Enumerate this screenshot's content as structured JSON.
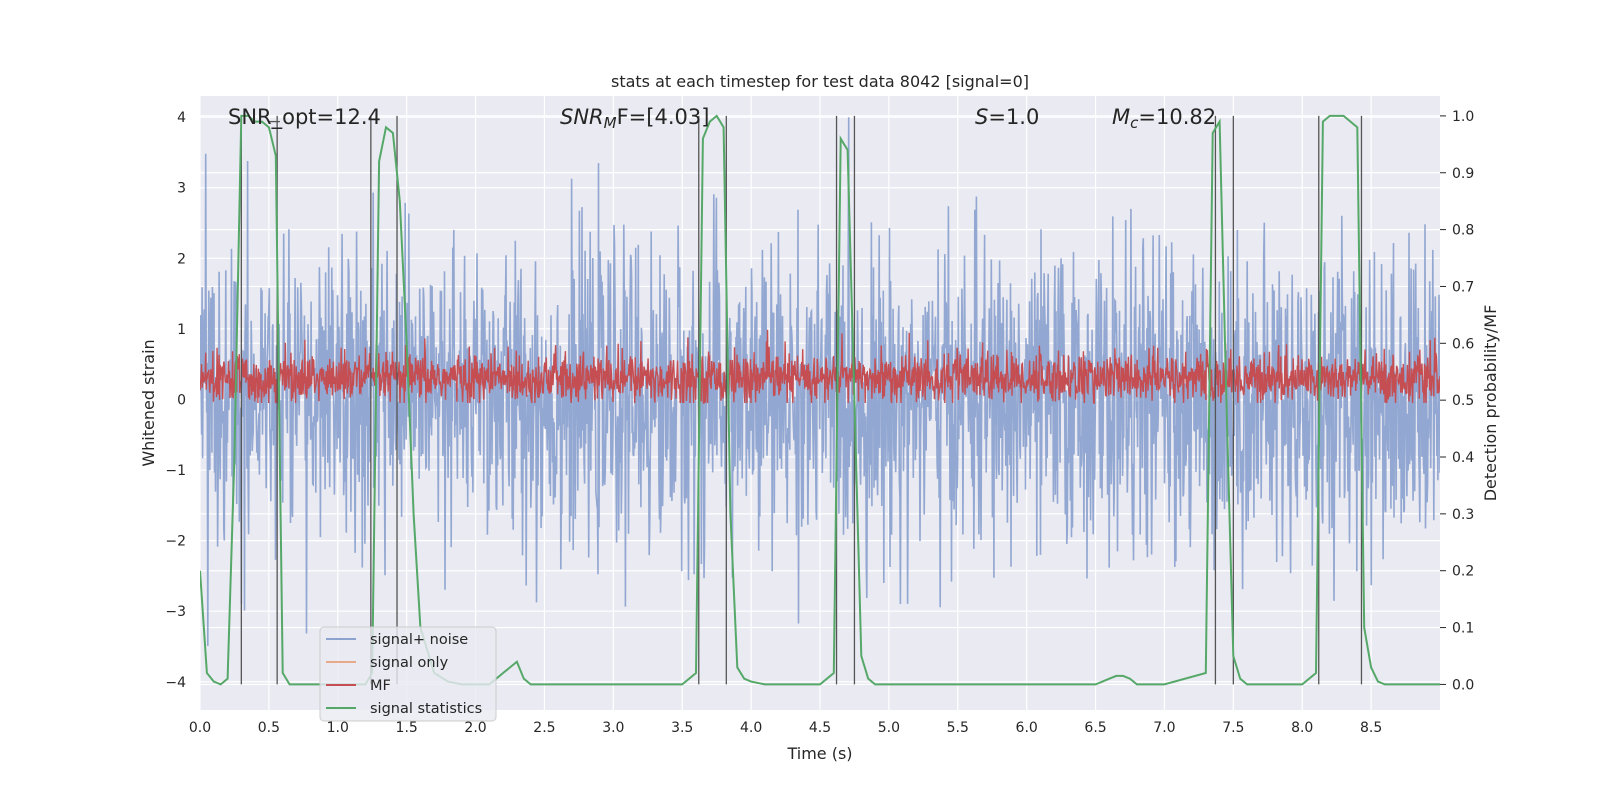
{
  "chart_data": {
    "type": "line",
    "title": "stats at each timestep for test data 8042 [signal=0]",
    "xlabel": "Time (s)",
    "ylabel_left": "Whitened strain",
    "ylabel_right": "Detection probability/MF",
    "xlim": [
      0.0,
      9.0
    ],
    "ylim_left": [
      -4.4,
      4.3
    ],
    "ylim_right": [
      -0.045,
      1.035
    ],
    "x_ticks": [
      "0.0",
      "0.5",
      "1.0",
      "1.5",
      "2.0",
      "2.5",
      "3.0",
      "3.5",
      "4.0",
      "4.5",
      "5.0",
      "5.5",
      "6.0",
      "6.5",
      "7.0",
      "7.5",
      "8.0",
      "8.5"
    ],
    "y_ticks_left": [
      "4",
      "3",
      "2",
      "1",
      "0",
      "−1",
      "−2",
      "−3",
      "−4"
    ],
    "y_ticks_right": [
      "1.0",
      "0.9",
      "0.8",
      "0.7",
      "0.6",
      "0.5",
      "0.4",
      "0.3",
      "0.2",
      "0.1",
      "0.0"
    ],
    "grid": true,
    "legend_placement": "lower-left",
    "annotations": {
      "snr_opt": "SNR_opt=12.4",
      "snr_mf_italic": "SNR",
      "snr_mf_sub": "M",
      "snr_mf_rest": "F=[4.03]",
      "s_italic": "S",
      "s_rest": "=1.0",
      "mc_italic": "M",
      "mc_sub": "c",
      "mc_rest": "=10.82"
    },
    "series": [
      {
        "name": "signal+ noise",
        "color": "#8da3cf",
        "style": "dense noise, approx within -2.5..2.5, extremes to ±4"
      },
      {
        "name": "signal only",
        "color": "#e8a98a",
        "values": []
      },
      {
        "name": "MF",
        "color": "#c44e52",
        "style": "dense noise, approx 0..0.8 with peaks to 1.0"
      },
      {
        "name": "signal statistics",
        "color": "#55a868",
        "axis": "right",
        "x": [
          0.0,
          0.05,
          0.1,
          0.15,
          0.2,
          0.25,
          0.3,
          0.35,
          0.4,
          0.45,
          0.5,
          0.55,
          0.6,
          0.65,
          0.7,
          0.8,
          0.9,
          1.0,
          1.1,
          1.2,
          1.25,
          1.3,
          1.35,
          1.4,
          1.45,
          1.5,
          1.55,
          1.6,
          1.7,
          1.8,
          1.9,
          2.0,
          2.1,
          2.2,
          2.3,
          2.35,
          2.4,
          2.5,
          3.0,
          3.5,
          3.6,
          3.65,
          3.7,
          3.75,
          3.8,
          3.85,
          3.9,
          3.95,
          4.0,
          4.1,
          4.5,
          4.6,
          4.65,
          4.7,
          4.75,
          4.8,
          4.85,
          4.9,
          4.95,
          5.0,
          5.5,
          6.0,
          6.5,
          6.6,
          6.65,
          6.7,
          6.75,
          6.8,
          6.85,
          7.0,
          7.3,
          7.35,
          7.4,
          7.45,
          7.5,
          7.55,
          7.6,
          7.65,
          7.7,
          8.0,
          8.1,
          8.15,
          8.2,
          8.25,
          8.3,
          8.4,
          8.45,
          8.5,
          8.55,
          8.6,
          8.65,
          8.7,
          8.75,
          8.9,
          9.0
        ],
        "values": [
          0.2,
          0.02,
          0.005,
          0.0,
          0.01,
          0.4,
          1.0,
          1.0,
          0.99,
          0.99,
          0.98,
          0.93,
          0.02,
          0.0,
          0.0,
          0.0,
          0.0,
          0.0,
          0.0,
          0.0,
          0.02,
          0.92,
          0.98,
          0.97,
          0.85,
          0.6,
          0.3,
          0.1,
          0.02,
          0.005,
          0.0,
          0.0,
          0.0,
          0.02,
          0.04,
          0.01,
          0.0,
          0.0,
          0.0,
          0.0,
          0.02,
          0.96,
          0.99,
          1.0,
          0.98,
          0.3,
          0.03,
          0.01,
          0.005,
          0.0,
          0.0,
          0.02,
          0.96,
          0.94,
          0.5,
          0.05,
          0.01,
          0.0,
          0.0,
          0.0,
          0.0,
          0.0,
          0.0,
          0.01,
          0.015,
          0.015,
          0.01,
          0.0,
          0.0,
          0.0,
          0.02,
          0.97,
          0.99,
          0.5,
          0.05,
          0.01,
          0.0,
          0.0,
          0.0,
          0.0,
          0.02,
          0.99,
          1.0,
          1.0,
          1.0,
          0.98,
          0.1,
          0.03,
          0.005,
          0.0,
          0.0,
          0.0,
          0.0,
          0.0,
          0.0
        ]
      }
    ],
    "vertical_markers": [
      0.3,
      0.56,
      1.24,
      1.43,
      3.62,
      3.82,
      4.62,
      4.75,
      7.37,
      7.5,
      8.12,
      8.43
    ]
  }
}
